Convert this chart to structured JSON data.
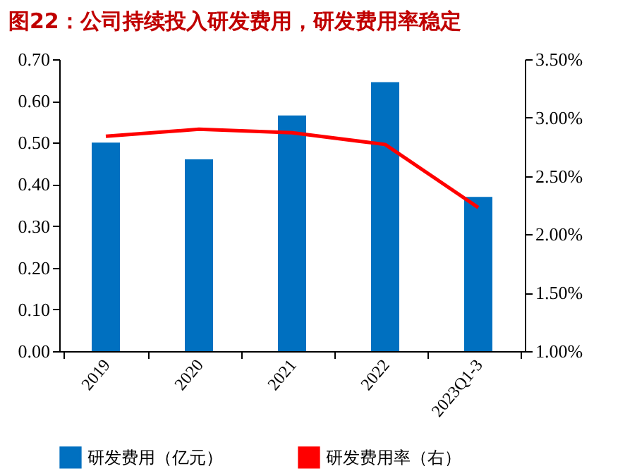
{
  "chart_data": {
    "type": "bar",
    "title": "图22：公司持续投入研发费用，研发费用率稳定",
    "categories": [
      "2019",
      "2020",
      "2021",
      "2022",
      "2023Q1-3"
    ],
    "series": [
      {
        "name": "研发费用（亿元）",
        "color": "#0070c0",
        "values": [
          0.5,
          0.46,
          0.565,
          0.645,
          0.37
        ]
      },
      {
        "name": "研发费用率（右）",
        "type": "line",
        "axis": "y2",
        "color": "#ff0000",
        "values": [
          2.84,
          2.9,
          2.87,
          2.77,
          2.23
        ]
      }
    ],
    "ylim": [
      0,
      0.7
    ],
    "yticks": [
      {
        "value": 0,
        "label": "0.00"
      },
      {
        "value": 0.1,
        "label": "0.10"
      },
      {
        "value": 0.2,
        "label": "0.20"
      },
      {
        "value": 0.3,
        "label": "0.30"
      },
      {
        "value": 0.4,
        "label": "0.40"
      },
      {
        "value": 0.5,
        "label": "0.50"
      },
      {
        "value": 0.6,
        "label": "0.60"
      },
      {
        "value": 0.7,
        "label": "0.70"
      }
    ],
    "y2lim": [
      1,
      3.5
    ],
    "y2ticks": [
      {
        "value": 1,
        "label": "1.00%"
      },
      {
        "value": 1.5,
        "label": "1.50%"
      },
      {
        "value": 2,
        "label": "2.00%"
      },
      {
        "value": 2.5,
        "label": "2.50%"
      },
      {
        "value": 3,
        "label": "3.00%"
      },
      {
        "value": 3.5,
        "label": "3.50%"
      }
    ],
    "legend": "bottom",
    "grid": false,
    "marker": "none",
    "line_style": "solid"
  }
}
